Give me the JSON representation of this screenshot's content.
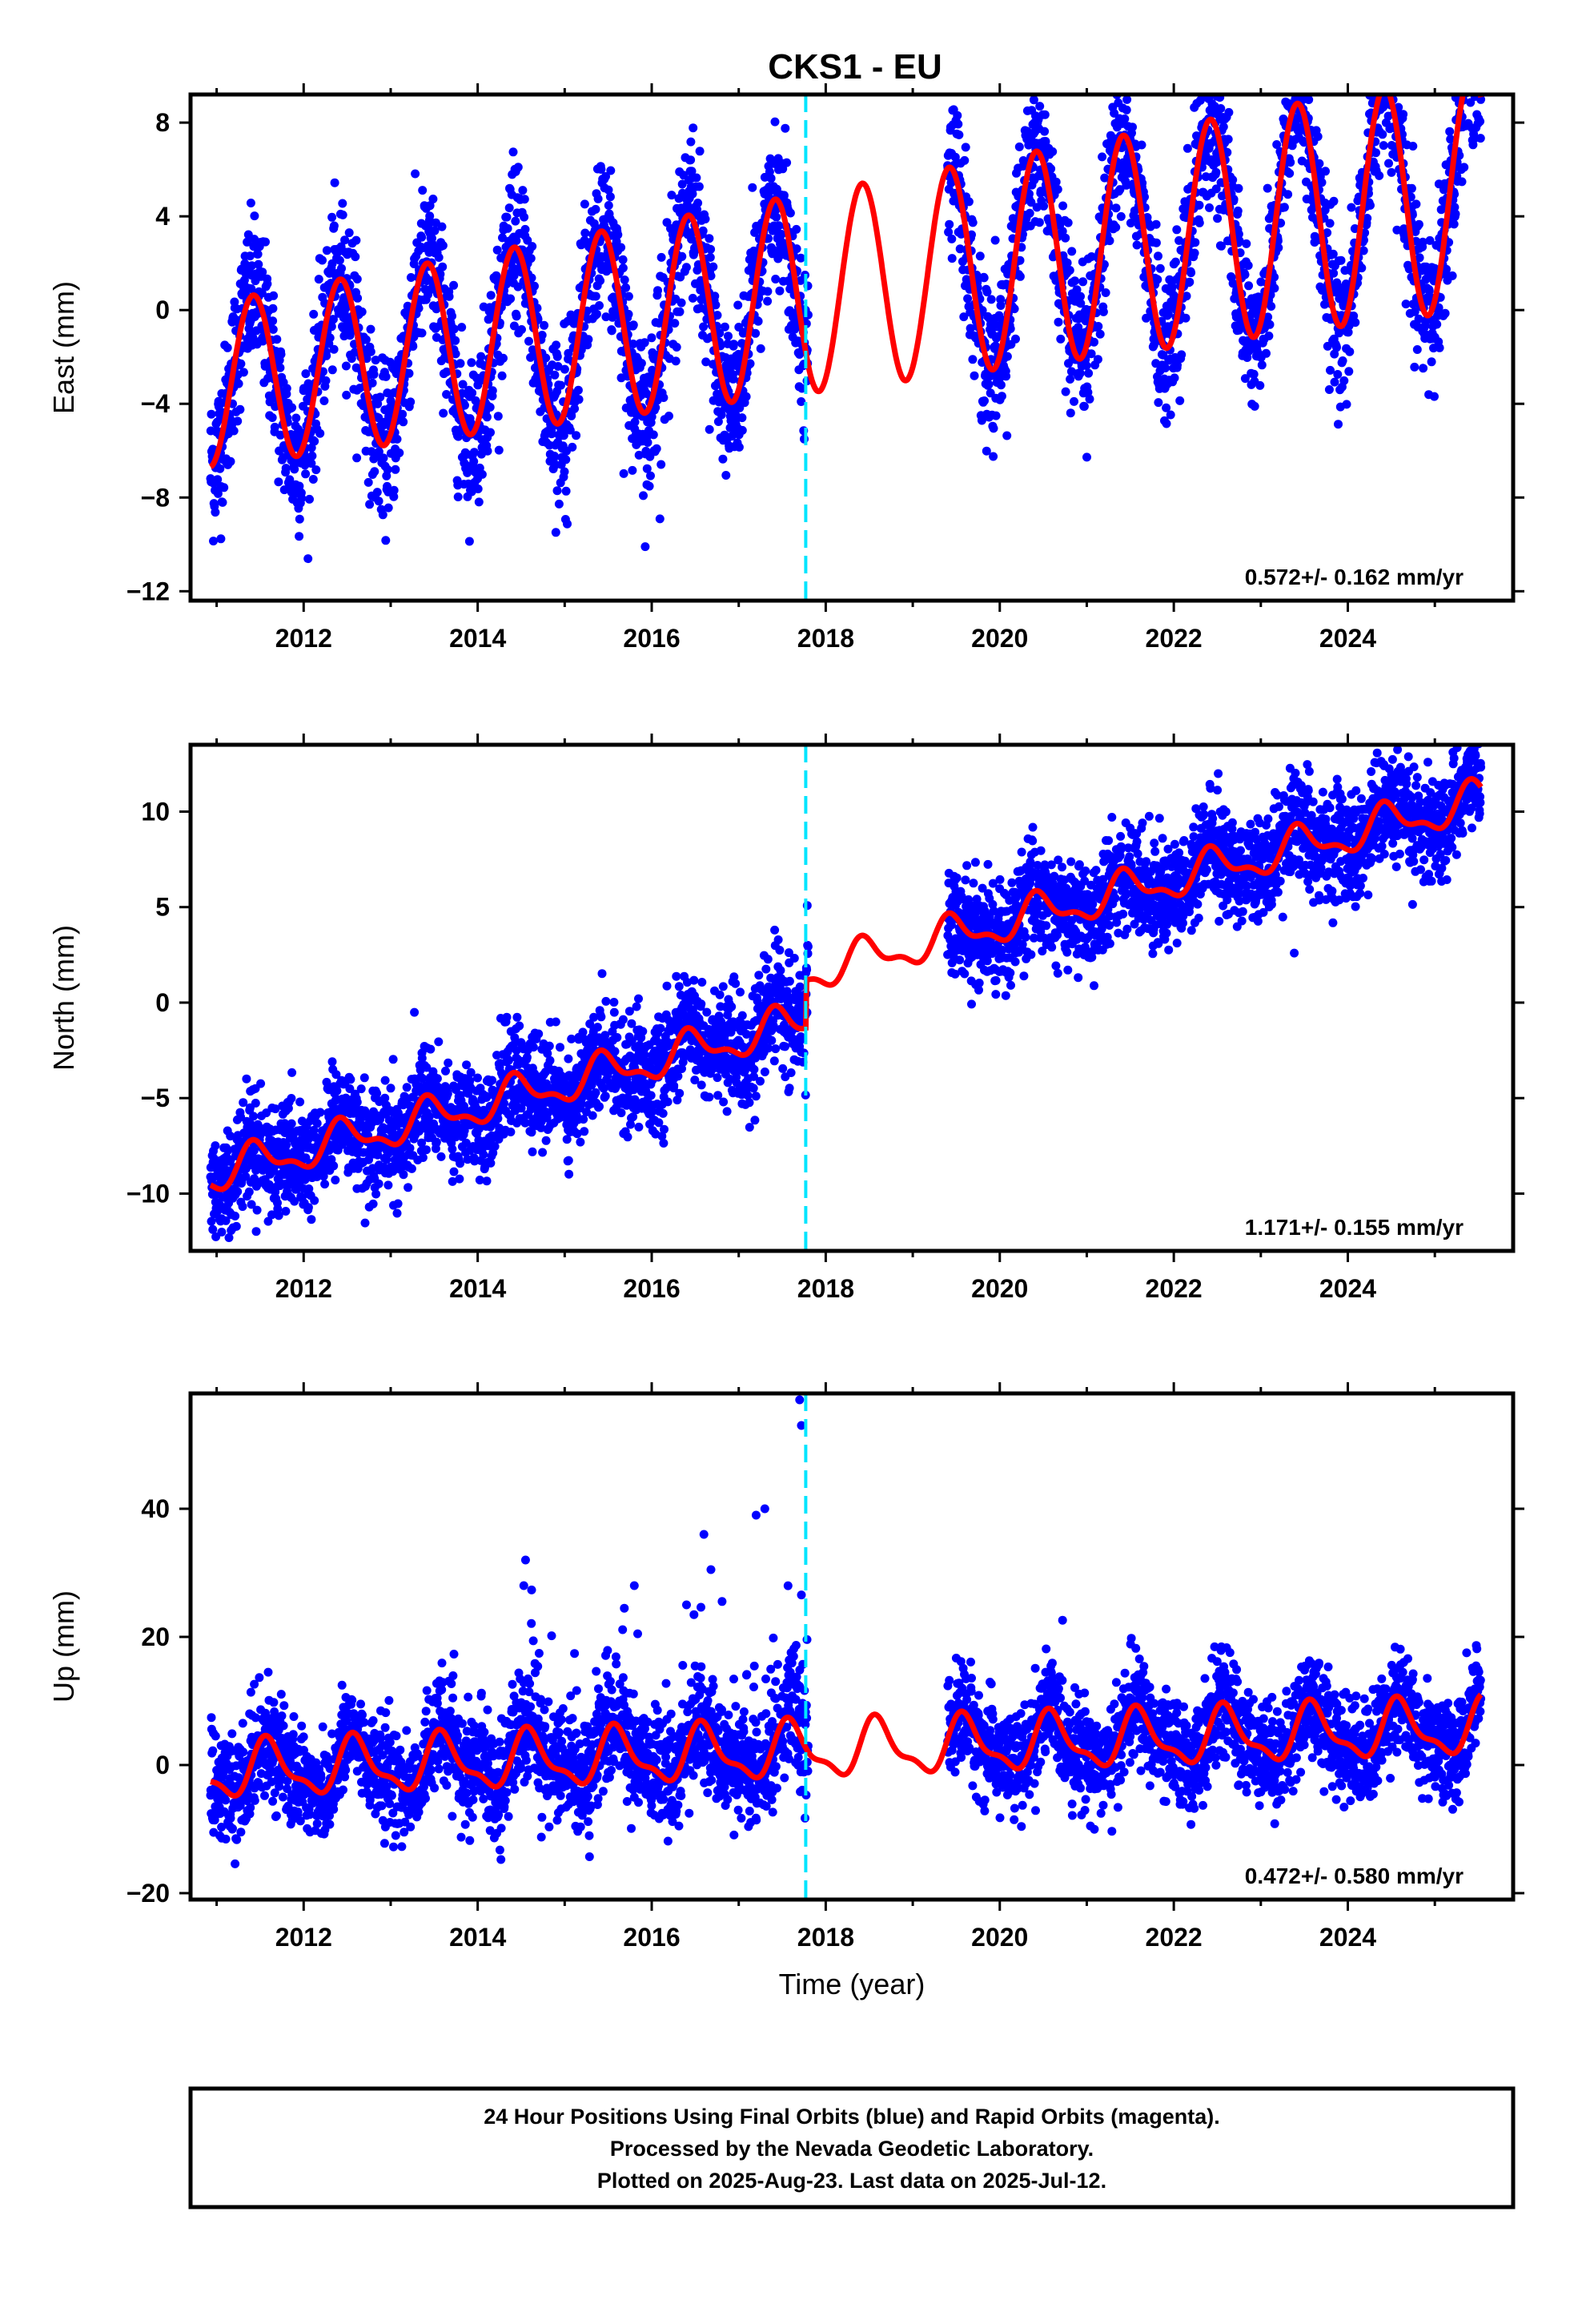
{
  "title": "CKS1 - EU",
  "footer": {
    "line1": "24 Hour Positions Using Final Orbits (blue) and Rapid Orbits (magenta).",
    "line2": "Processed by the Nevada Geodetic Laboratory.",
    "line3": "Plotted on 2025-Aug-23. Last data on 2025-Jul-12."
  },
  "colors": {
    "points": "#0000ff",
    "model": "#ff0000",
    "event_line": "#00e5ff"
  },
  "chart_data": [
    {
      "type": "scatter",
      "component": "East",
      "ylabel": "East (mm)",
      "xlabel": "",
      "xlim": [
        2010.7,
        2025.9
      ],
      "ylim": [
        -12.4,
        9.2
      ],
      "xticks": [
        2012,
        2014,
        2016,
        2018,
        2020,
        2022,
        2024
      ],
      "yticks": [
        -12,
        -8,
        -4,
        0,
        4,
        8
      ],
      "rate_label": "0.572+/- 0.162 mm/yr",
      "event_line_x": 2017.77,
      "data_gap": [
        2017.8,
        2019.4
      ],
      "data_range": [
        2010.93,
        2025.53
      ],
      "model": {
        "series": "Annual signal with linear trend",
        "annual_amplitude": 3.5,
        "amplitude_growth_per_year": 0.11,
        "peak_phase_year_fraction": 0.42,
        "offset_at_start": -3.2,
        "trend_mm_per_yr": 0.572
      },
      "scatter_noise": 1.6
    },
    {
      "type": "scatter",
      "component": "North",
      "ylabel": "North (mm)",
      "xlabel": "",
      "xlim": [
        2010.7,
        2025.9
      ],
      "ylim": [
        -13,
        13.5
      ],
      "xticks": [
        2012,
        2014,
        2016,
        2018,
        2020,
        2022,
        2024
      ],
      "yticks": [
        -10,
        -5,
        0,
        5,
        10
      ],
      "rate_label": "1.171+/- 0.155 mm/yr",
      "event_line_x": 2017.77,
      "offset_at_event": 2.5,
      "data_gap": [
        2017.8,
        2019.4
      ],
      "data_range": [
        2010.93,
        2025.53
      ],
      "model": {
        "annual_amplitude": 0.9,
        "semiannual_amplitude": 0.4,
        "peak_phase_year_fraction": 0.45,
        "offset_at_start": -9.0,
        "trend_mm_per_yr": 1.171
      },
      "scatter_noise": 1.4
    },
    {
      "type": "scatter",
      "component": "Up",
      "ylabel": "Up (mm)",
      "xlabel": "Time (year)",
      "xlim": [
        2010.7,
        2025.9
      ],
      "ylim": [
        -21,
        58
      ],
      "xticks": [
        2012,
        2014,
        2016,
        2018,
        2020,
        2022,
        2024
      ],
      "yticks": [
        -20,
        0,
        20,
        40
      ],
      "rate_label": "0.472+/- 0.580 mm/yr",
      "event_line_x": 2017.77,
      "data_gap": [
        2017.8,
        2019.4
      ],
      "data_range": [
        2010.93,
        2025.53
      ],
      "model": {
        "annual_amplitude": 4.0,
        "semiannual_amplitude": 1.5,
        "peak_phase_year_fraction": 0.6,
        "offset_at_start": -1.0,
        "trend_mm_per_yr": 0.472
      },
      "scatter_noise": 4.0,
      "outliers": [
        [
          2017.7,
          57
        ],
        [
          2017.72,
          53
        ],
        [
          2014.55,
          32
        ],
        [
          2016.6,
          36
        ],
        [
          2017.2,
          39
        ],
        [
          2017.3,
          40
        ],
        [
          2014.53,
          28
        ],
        [
          2015.8,
          28
        ],
        [
          2016.4,
          25
        ]
      ]
    }
  ]
}
